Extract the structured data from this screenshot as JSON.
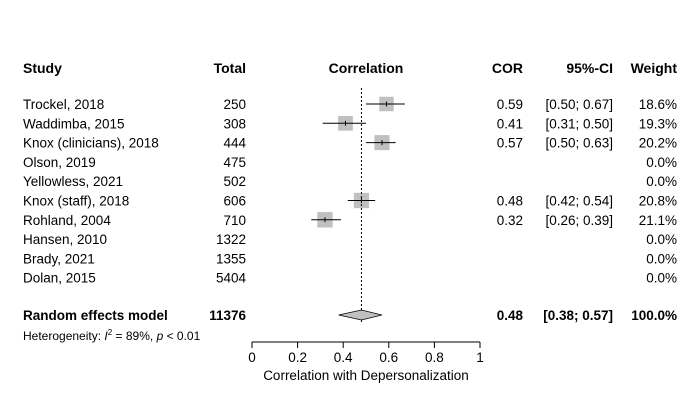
{
  "chart_data": {
    "type": "forest",
    "headers": {
      "study": "Study",
      "total": "Total",
      "effect": "Correlation",
      "cor": "COR",
      "ci": "95%-CI",
      "weight": "Weight"
    },
    "studies": [
      {
        "study": "Trockel, 2018",
        "total": "250",
        "cor": "0.59",
        "ci": "[0.50; 0.67]",
        "weight": "18.6%",
        "est": 0.59,
        "lo": 0.5,
        "hi": 0.67,
        "w": 18.6
      },
      {
        "study": "Waddimba, 2015",
        "total": "308",
        "cor": "0.41",
        "ci": "[0.31; 0.50]",
        "weight": "19.3%",
        "est": 0.41,
        "lo": 0.31,
        "hi": 0.5,
        "w": 19.3
      },
      {
        "study": "Knox (clinicians), 2018",
        "total": "444",
        "cor": "0.57",
        "ci": "[0.50; 0.63]",
        "weight": "20.2%",
        "est": 0.57,
        "lo": 0.5,
        "hi": 0.63,
        "w": 20.2
      },
      {
        "study": "Olson, 2019",
        "total": "475",
        "cor": "",
        "ci": "",
        "weight": "0.0%",
        "est": null,
        "lo": null,
        "hi": null,
        "w": 0
      },
      {
        "study": "Yellowless, 2021",
        "total": "502",
        "cor": "",
        "ci": "",
        "weight": "0.0%",
        "est": null,
        "lo": null,
        "hi": null,
        "w": 0
      },
      {
        "study": "Knox (staff), 2018",
        "total": "606",
        "cor": "0.48",
        "ci": "[0.42; 0.54]",
        "weight": "20.8%",
        "est": 0.48,
        "lo": 0.42,
        "hi": 0.54,
        "w": 20.8
      },
      {
        "study": "Rohland, 2004",
        "total": "710",
        "cor": "0.32",
        "ci": "[0.26; 0.39]",
        "weight": "21.1%",
        "est": 0.32,
        "lo": 0.26,
        "hi": 0.39,
        "w": 21.1
      },
      {
        "study": "Hansen, 2010",
        "total": "1322",
        "cor": "",
        "ci": "",
        "weight": "0.0%",
        "est": null,
        "lo": null,
        "hi": null,
        "w": 0
      },
      {
        "study": "Brady, 2021",
        "total": "1355",
        "cor": "",
        "ci": "",
        "weight": "0.0%",
        "est": null,
        "lo": null,
        "hi": null,
        "w": 0
      },
      {
        "study": "Dolan, 2015",
        "total": "5404",
        "cor": "",
        "ci": "",
        "weight": "0.0%",
        "est": null,
        "lo": null,
        "hi": null,
        "w": 0
      }
    ],
    "summary": {
      "label": "Random effects model",
      "total": "11376",
      "cor": "0.48",
      "ci": "[0.38; 0.57]",
      "weight": "100.0%",
      "est": 0.48,
      "lo": 0.38,
      "hi": 0.57
    },
    "heterogeneity": {
      "prefix": "Heterogeneity: ",
      "stat": "I",
      "sup": "2",
      "mid": " = 89%, ",
      "p": "p",
      "tail": " < 0.01"
    },
    "x_axis": {
      "label": "Correlation with Depersonalization",
      "ticks": [
        0,
        0.2,
        0.4,
        0.6,
        0.8,
        1
      ],
      "tick_labels": [
        "0",
        "0.2",
        "0.4",
        "0.6",
        "0.8",
        "1"
      ],
      "range": [
        0,
        1
      ]
    },
    "reference_line": 0.48,
    "colors": {
      "square": "#c0c0c0",
      "diamond": "#c0c0c0",
      "line": "#000000"
    }
  }
}
